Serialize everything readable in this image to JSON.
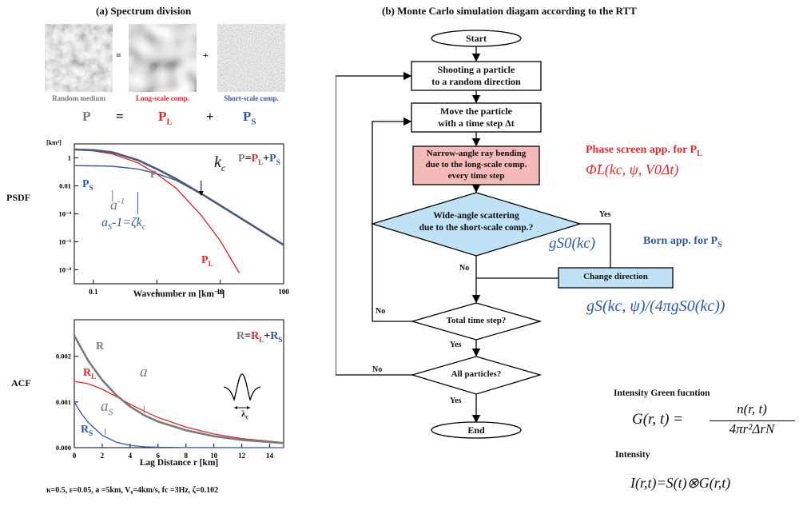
{
  "panel_a": {
    "title": "(a) Spectrum division",
    "images": {
      "random_medium": "Random medium",
      "long_scale": "Long-scale comp.",
      "short_scale": "Short-scale comp.",
      "eq_sign": "=",
      "plus_sign": "+"
    },
    "formula": {
      "p": "P",
      "eq": "=",
      "pl_base": "P",
      "pl_sub": "L",
      "plus": "+",
      "ps_base": "P",
      "ps_sub": "S"
    },
    "psdf": {
      "row_label": "PSDF",
      "unit": "[km³]",
      "y_ticks": [
        "1",
        "0.01",
        "10⁻⁴",
        "10⁻⁶",
        "10⁻⁸"
      ],
      "x_ticks": [
        "0.1",
        "1",
        "10",
        "100"
      ],
      "xlabel": "Wavenumber m [km⁻¹]",
      "legend": {
        "lhs": "P",
        "eq": "=",
        "l": "P",
        "l_sub": "L",
        "plus": "+",
        "s": "P",
        "s_sub": "S"
      },
      "labels": {
        "p": "P",
        "ps": "P",
        "ps_sub": "S",
        "pl": "P",
        "pl_sub": "L",
        "kc": "k",
        "kc_sub": "c",
        "a_inv": "a",
        "a_inv_sup": "-1",
        "as_inv": "a",
        "as_inv_sub": "S",
        "as_inv_rest": "-1=ζk",
        "as_inv_rest_sub": "c"
      }
    },
    "acf": {
      "row_label": "ACF",
      "y_ticks": [
        "0.002",
        "0.001",
        "0.000"
      ],
      "x_ticks": [
        "0",
        "2",
        "4",
        "6",
        "8",
        "10",
        "12",
        "14"
      ],
      "xlabel": "Lag Distance r [km]",
      "legend": {
        "lhs": "R",
        "eq": "=",
        "l": "R",
        "l_sub": "L",
        "plus": "+",
        "s": "R",
        "s_sub": "S"
      },
      "labels": {
        "r": "R",
        "rl": "R",
        "rl_sub": "L",
        "rs": "R",
        "rs_sub": "S",
        "a": "a",
        "as": "a",
        "as_sub": "S",
        "lambda": "λ",
        "lambda_sub": "c"
      }
    },
    "params": "κ=0.5,  ε=0.05, a =5km, V₀=4km/s, fc =3Hz, ζ=0.102",
    "colors": {
      "total": "#7a7a7a",
      "long": "#e0282a",
      "short": "#2f5aa0",
      "combined": "#4b5a7a"
    }
  },
  "chart_data": [
    {
      "type": "line",
      "title": "PSDF",
      "xlabel": "Wavenumber m [km⁻¹]",
      "ylabel": "[km³]",
      "xscale": "log",
      "yscale": "log",
      "xlim": [
        0.05,
        100
      ],
      "ylim": [
        1e-09,
        10
      ],
      "series": [
        {
          "name": "P",
          "x": [
            0.05,
            0.1,
            0.2,
            0.5,
            1,
            2,
            5,
            10,
            30,
            100
          ],
          "y": [
            4,
            3.6,
            2.5,
            0.7,
            0.16,
            0.032,
            0.0028,
            0.0004,
            1.8e-05,
            6e-07
          ]
        },
        {
          "name": "PL",
          "x": [
            0.05,
            0.1,
            0.2,
            0.5,
            1,
            2,
            5,
            10,
            20
          ],
          "y": [
            3.9,
            3.2,
            1.9,
            0.45,
            0.07,
            0.007,
            8e-05,
            1.2e-06,
            6e-09
          ]
        },
        {
          "name": "PS",
          "x": [
            0.05,
            0.1,
            0.2,
            0.5,
            1,
            2,
            5,
            10,
            30,
            100
          ],
          "y": [
            0.28,
            0.27,
            0.25,
            0.16,
            0.075,
            0.025,
            0.0027,
            0.0004,
            1.8e-05,
            6e-07
          ]
        }
      ],
      "annotations": [
        "kc",
        "a-1",
        "aS-1=ζkc"
      ]
    },
    {
      "type": "line",
      "title": "ACF",
      "xlabel": "Lag Distance r [km]",
      "xlim": [
        0,
        15
      ],
      "ylim": [
        0,
        0.0028
      ],
      "series": [
        {
          "name": "R",
          "x": [
            0,
            1,
            2,
            3,
            4,
            5,
            6,
            8,
            10,
            12,
            15
          ],
          "y": [
            0.00245,
            0.0019,
            0.00148,
            0.00115,
            0.0009,
            0.00071,
            0.00057,
            0.00038,
            0.00025,
            0.00017,
            0.0001
          ]
        },
        {
          "name": "RL",
          "x": [
            0,
            1,
            2,
            3,
            4,
            5,
            6,
            8,
            10,
            12,
            15
          ],
          "y": [
            0.00145,
            0.0014,
            0.00128,
            0.00112,
            0.00095,
            0.0008,
            0.00066,
            0.00045,
            0.0003,
            0.0002,
            0.00011
          ]
        },
        {
          "name": "RS",
          "x": [
            0,
            0.5,
            1,
            2,
            3,
            4,
            5,
            6,
            8,
            15
          ],
          "y": [
            0.001,
            0.00075,
            0.00055,
            0.00027,
            0.00012,
            5e-05,
            2e-05,
            8e-06,
            2e-06,
            0
          ]
        }
      ],
      "annotations": [
        "a",
        "aS"
      ]
    }
  ],
  "panel_b": {
    "title": "(b) Monte Carlo simulation diagam according to the RTT",
    "start": "Start",
    "end": "End",
    "shoot_line1": "Shooting a particle",
    "shoot_line2": "to a random direction",
    "move_line1": "Move the particle",
    "move_line2": "with a time step Δt",
    "narrow_line1": "Narrow-angle ray bending",
    "narrow_line2": "due to the long-scale comp.",
    "narrow_line3": "every time step",
    "wide_line1": "Wide-angle scattering",
    "wide_line2": "due to the short-scale comp.?",
    "yes": "Yes",
    "no": "No",
    "change_dir": "Change direction",
    "total_time": "Total time step?",
    "all_particles": "All particles?",
    "phase_screen": "Phase screen app. for P",
    "phase_screen_sub": "L",
    "born": "Born app. for P",
    "born_sub": "S",
    "phi_formula": "Φ̆L(kc, ψ, V0Δt)",
    "gs0_formula": "gS0(kc)",
    "gs_formula": "gS(kc, ψ)/(4πgS0(kc))",
    "green_title": "Intensity Green fucntion",
    "green_lhs": "G(r, t) =",
    "green_num": "n(r, t)",
    "green_den": "4πr²ΔrN",
    "intensity_title": "Intensity",
    "intensity_formula": "I(r,t)=S(t)⊗G(r,t)",
    "colors": {
      "red": "#e0282a",
      "blue": "#2f5aa0",
      "diamond_fill": "#bfe3f5",
      "red_fill": "#f4b9b9"
    }
  }
}
